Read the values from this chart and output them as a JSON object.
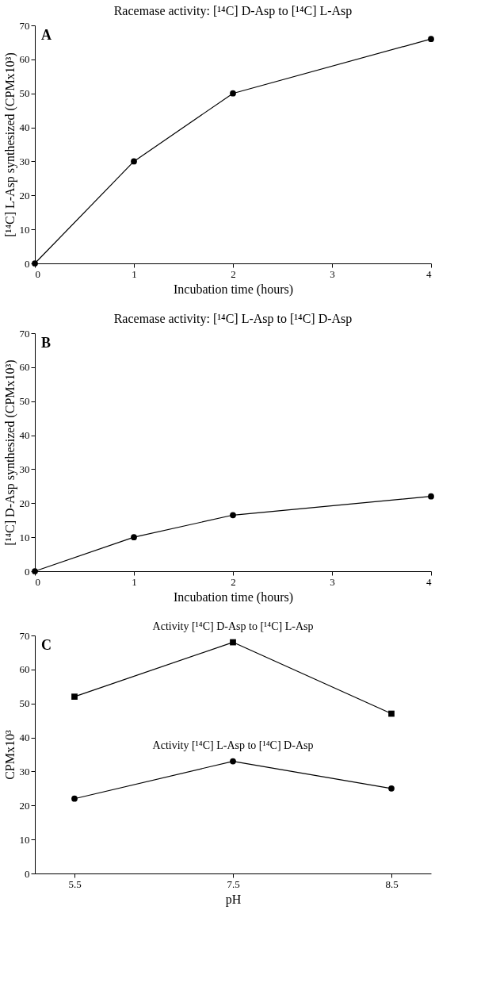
{
  "chart_data": [
    {
      "type": "line",
      "title": "Racemase activity: [¹⁴C] D-Asp to [¹⁴C] L-Asp",
      "xlabel": "Incubation time (hours)",
      "ylabel": "[¹⁴C] L-Asp synthesized (CPMx10³)",
      "annotations": [
        "A"
      ],
      "x": [
        0,
        1,
        2,
        4
      ],
      "series": [
        {
          "color": "#000000",
          "values": [
            0,
            30,
            50,
            66
          ]
        }
      ],
      "xlim": [
        0,
        4
      ],
      "xticks": [
        0,
        1,
        2,
        3,
        4
      ],
      "ylim": [
        0,
        70
      ],
      "yticks": [
        0,
        10,
        20,
        30,
        40,
        50,
        60,
        70
      ],
      "marker": "circle",
      "grid": false
    },
    {
      "type": "line",
      "title": "Racemase activity: [¹⁴C] L-Asp to [¹⁴C] D-Asp",
      "xlabel": "Incubation time (hours)",
      "ylabel": "[¹⁴C] D-Asp synthesized (CPMx10³)",
      "annotations": [
        "B"
      ],
      "x": [
        0,
        1,
        2,
        4
      ],
      "series": [
        {
          "color": "#000000",
          "values": [
            0,
            10,
            16.5,
            22
          ]
        }
      ],
      "xlim": [
        0,
        4
      ],
      "xticks": [
        0,
        1,
        2,
        3,
        4
      ],
      "ylim": [
        0,
        70
      ],
      "yticks": [
        0,
        10,
        20,
        30,
        40,
        50,
        60,
        70
      ],
      "marker": "circle",
      "grid": false
    },
    {
      "type": "line",
      "xlabel": "pH",
      "ylabel": "CPMx10³",
      "annotations": [
        "C"
      ],
      "categories": [
        "5.5",
        "7.5",
        "8.5"
      ],
      "series": [
        {
          "name": "Activity [¹⁴C] D-Asp to [¹⁴C] L-Asp",
          "color": "#000000",
          "values": [
            52,
            68,
            47
          ],
          "marker": "square"
        },
        {
          "name": "Activity [¹⁴C] L-Asp to [¹⁴C] D-Asp",
          "color": "#000000",
          "values": [
            22,
            33,
            25
          ],
          "marker": "circle"
        }
      ],
      "ylim": [
        0,
        70
      ],
      "yticks": [
        0,
        10,
        20,
        30,
        40,
        50,
        60,
        70
      ],
      "grid": false
    }
  ]
}
